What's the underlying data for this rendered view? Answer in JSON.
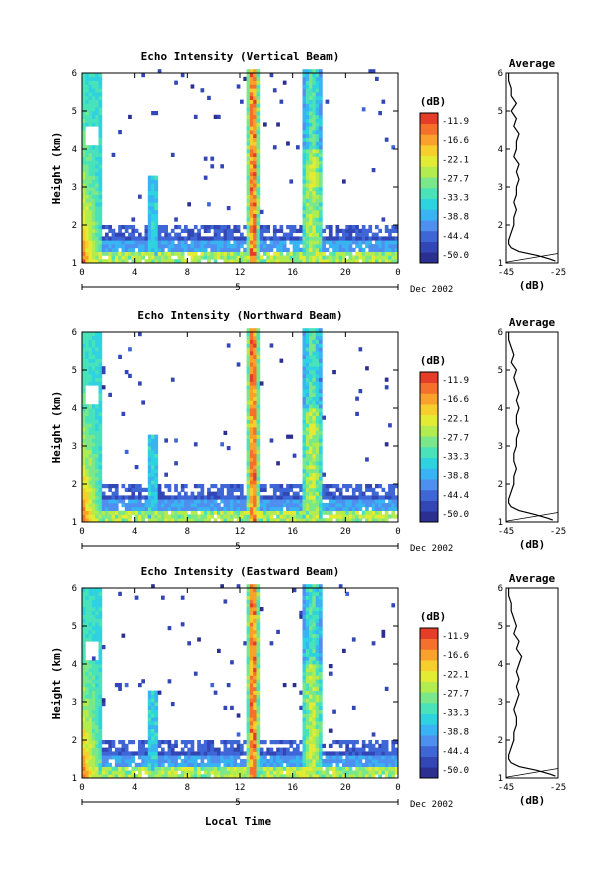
{
  "figure": {
    "xlabel": "Local Time",
    "date_label": "Dec 2002",
    "average_title": "Average",
    "average_xlabel": "(dB)",
    "colorbar_unit": "(dB)",
    "colorbar_ticks": [
      "-11.9",
      "-16.6",
      "-22.1",
      "-27.7",
      "-33.3",
      "-38.8",
      "-44.4",
      "-50.0"
    ],
    "colors": [
      "#2b2f8f",
      "#3346b5",
      "#3f66d6",
      "#4f8ff0",
      "#38b4f2",
      "#2ed3e0",
      "#48e3b8",
      "#7ae88a",
      "#b2ec4e",
      "#e2ec33",
      "#f7cf2c",
      "#f9a12a",
      "#f5702a",
      "#e53d2a"
    ]
  },
  "chart_data": [
    {
      "type": "heatmap",
      "title": "Echo Intensity (Vertical Beam)",
      "ylabel": "Height (km)",
      "x_ticks": [
        "0",
        "4",
        "8",
        "12",
        "16",
        "20",
        "0"
      ],
      "y_ticks": [
        "1",
        "2",
        "3",
        "4",
        "5",
        "6"
      ],
      "xlim": [
        0,
        24
      ],
      "ylim": [
        1,
        6
      ],
      "date_tick": "5",
      "value_range_db": [
        -50.0,
        -11.9
      ],
      "average": {
        "type": "line",
        "x_ticks": [
          "-45",
          "-25"
        ],
        "xlim": [
          -45,
          -25
        ],
        "heights_km": [
          1.05,
          1.1,
          1.2,
          1.3,
          1.4,
          1.5,
          1.6,
          1.8,
          2.0,
          2.2,
          2.4,
          2.6,
          2.8,
          3.0,
          3.2,
          3.4,
          3.6,
          3.8,
          4.0,
          4.2,
          4.4,
          4.6,
          4.8,
          5.0,
          5.2,
          5.4,
          5.6,
          5.8,
          6.0
        ],
        "values_db": [
          -26,
          -28,
          -33,
          -40,
          -43,
          -44,
          -44,
          -43,
          -42,
          -42,
          -41,
          -42,
          -41,
          -41,
          -40,
          -41,
          -40,
          -42,
          -41,
          -41,
          -40,
          -42,
          -41,
          -43,
          -41,
          -43,
          -43,
          -44,
          -44
        ]
      }
    },
    {
      "type": "heatmap",
      "title": "Echo Intensity (Northward Beam)",
      "ylabel": "Height (km)",
      "x_ticks": [
        "0",
        "4",
        "8",
        "12",
        "16",
        "20",
        "0"
      ],
      "y_ticks": [
        "1",
        "2",
        "3",
        "4",
        "5",
        "6"
      ],
      "xlim": [
        0,
        24
      ],
      "ylim": [
        1,
        6
      ],
      "date_tick": "5",
      "value_range_db": [
        -50.0,
        -11.9
      ],
      "average": {
        "type": "line",
        "x_ticks": [
          "-45",
          "-25"
        ],
        "xlim": [
          -45,
          -25
        ],
        "heights_km": [
          1.05,
          1.1,
          1.2,
          1.3,
          1.4,
          1.5,
          1.6,
          1.8,
          2.0,
          2.2,
          2.4,
          2.6,
          2.8,
          3.0,
          3.2,
          3.4,
          3.6,
          3.8,
          4.0,
          4.2,
          4.4,
          4.6,
          4.8,
          5.0,
          5.2,
          5.4,
          5.6,
          5.8,
          6.0
        ],
        "values_db": [
          -27,
          -29,
          -34,
          -40,
          -43,
          -44,
          -44,
          -43,
          -42,
          -42,
          -41,
          -42,
          -42,
          -41,
          -41,
          -40,
          -41,
          -41,
          -40,
          -41,
          -40,
          -41,
          -42,
          -41,
          -43,
          -42,
          -43,
          -44,
          -44
        ]
      }
    },
    {
      "type": "heatmap",
      "title": "Echo Intensity (Eastward Beam)",
      "ylabel": "Height (km)",
      "x_ticks": [
        "0",
        "4",
        "8",
        "12",
        "16",
        "20",
        "0"
      ],
      "y_ticks": [
        "1",
        "2",
        "3",
        "4",
        "5",
        "6"
      ],
      "xlim": [
        0,
        24
      ],
      "ylim": [
        1,
        6
      ],
      "date_tick": "5",
      "value_range_db": [
        -50.0,
        -11.9
      ],
      "average": {
        "type": "line",
        "x_ticks": [
          "-45",
          "-25"
        ],
        "xlim": [
          -45,
          -25
        ],
        "heights_km": [
          1.05,
          1.1,
          1.2,
          1.3,
          1.4,
          1.5,
          1.6,
          1.8,
          2.0,
          2.2,
          2.4,
          2.6,
          2.8,
          3.0,
          3.2,
          3.4,
          3.6,
          3.8,
          4.0,
          4.2,
          4.4,
          4.6,
          4.8,
          5.0,
          5.2,
          5.4,
          5.6,
          5.8,
          6.0
        ],
        "values_db": [
          -26,
          -28,
          -33,
          -40,
          -43,
          -44,
          -44,
          -43,
          -42,
          -42,
          -41,
          -41,
          -42,
          -41,
          -40,
          -41,
          -40,
          -41,
          -40,
          -39,
          -41,
          -40,
          -42,
          -41,
          -42,
          -43,
          -43,
          -44,
          -44
        ]
      }
    }
  ]
}
